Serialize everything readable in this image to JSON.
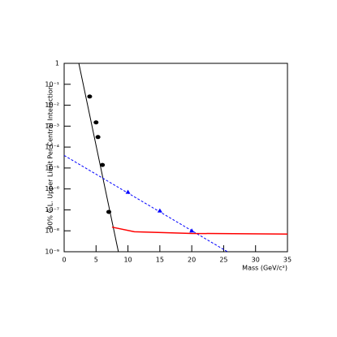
{
  "chart_data": {
    "type": "line",
    "x_label": "Mass (GeV/c²)",
    "y_label": "90% C.L. Upper Limit Per Central Interaction",
    "log_y": true,
    "xlim": [
      0,
      35
    ],
    "xticks": [
      0,
      5,
      10,
      15,
      20,
      25,
      30,
      35
    ],
    "ylim": [
      1e-09,
      1
    ],
    "yticks": [
      1,
      {
        "value": 0.1,
        "label": "10⁻¹"
      },
      {
        "value": 0.01,
        "label": "10⁻²"
      },
      {
        "value": 0.001,
        "label": "10⁻³"
      },
      {
        "value": 0.0001,
        "label": "10⁻⁴"
      },
      {
        "value": 1e-05,
        "label": "10⁻⁵"
      },
      {
        "value": 1e-06,
        "label": "10⁻⁶"
      },
      {
        "value": 1e-07,
        "label": "10⁻⁷"
      },
      {
        "value": 1e-08,
        "label": "10⁻⁸"
      },
      {
        "value": 1e-09,
        "label": "10⁻⁹"
      }
    ],
    "series": [
      {
        "color": "#000000",
        "mode": "line",
        "x": [
          2.3,
          8.5
        ],
        "values": [
          1,
          1e-09
        ]
      },
      {
        "color": "#000000",
        "mode": "markers",
        "marker": "circle",
        "x": [
          4,
          5,
          5.3,
          6,
          7
        ],
        "values": [
          0.026,
          0.0015,
          0.0003,
          1.4e-05,
          8e-08
        ]
      },
      {
        "color": "#0000ff",
        "mode": "line",
        "dashed": true,
        "x": [
          0,
          25.6
        ],
        "values": [
          4e-05,
          1e-09
        ]
      },
      {
        "color": "#0000ff",
        "mode": "markers",
        "marker": "triangle",
        "x": [
          10,
          15,
          20
        ],
        "values": [
          7e-07,
          9e-08,
          1e-08
        ]
      },
      {
        "color": "#ff0000",
        "mode": "line",
        "x": [
          7.5,
          11,
          20,
          35
        ],
        "values": [
          1.5e-08,
          9e-09,
          7.5e-09,
          7e-09
        ]
      }
    ]
  }
}
